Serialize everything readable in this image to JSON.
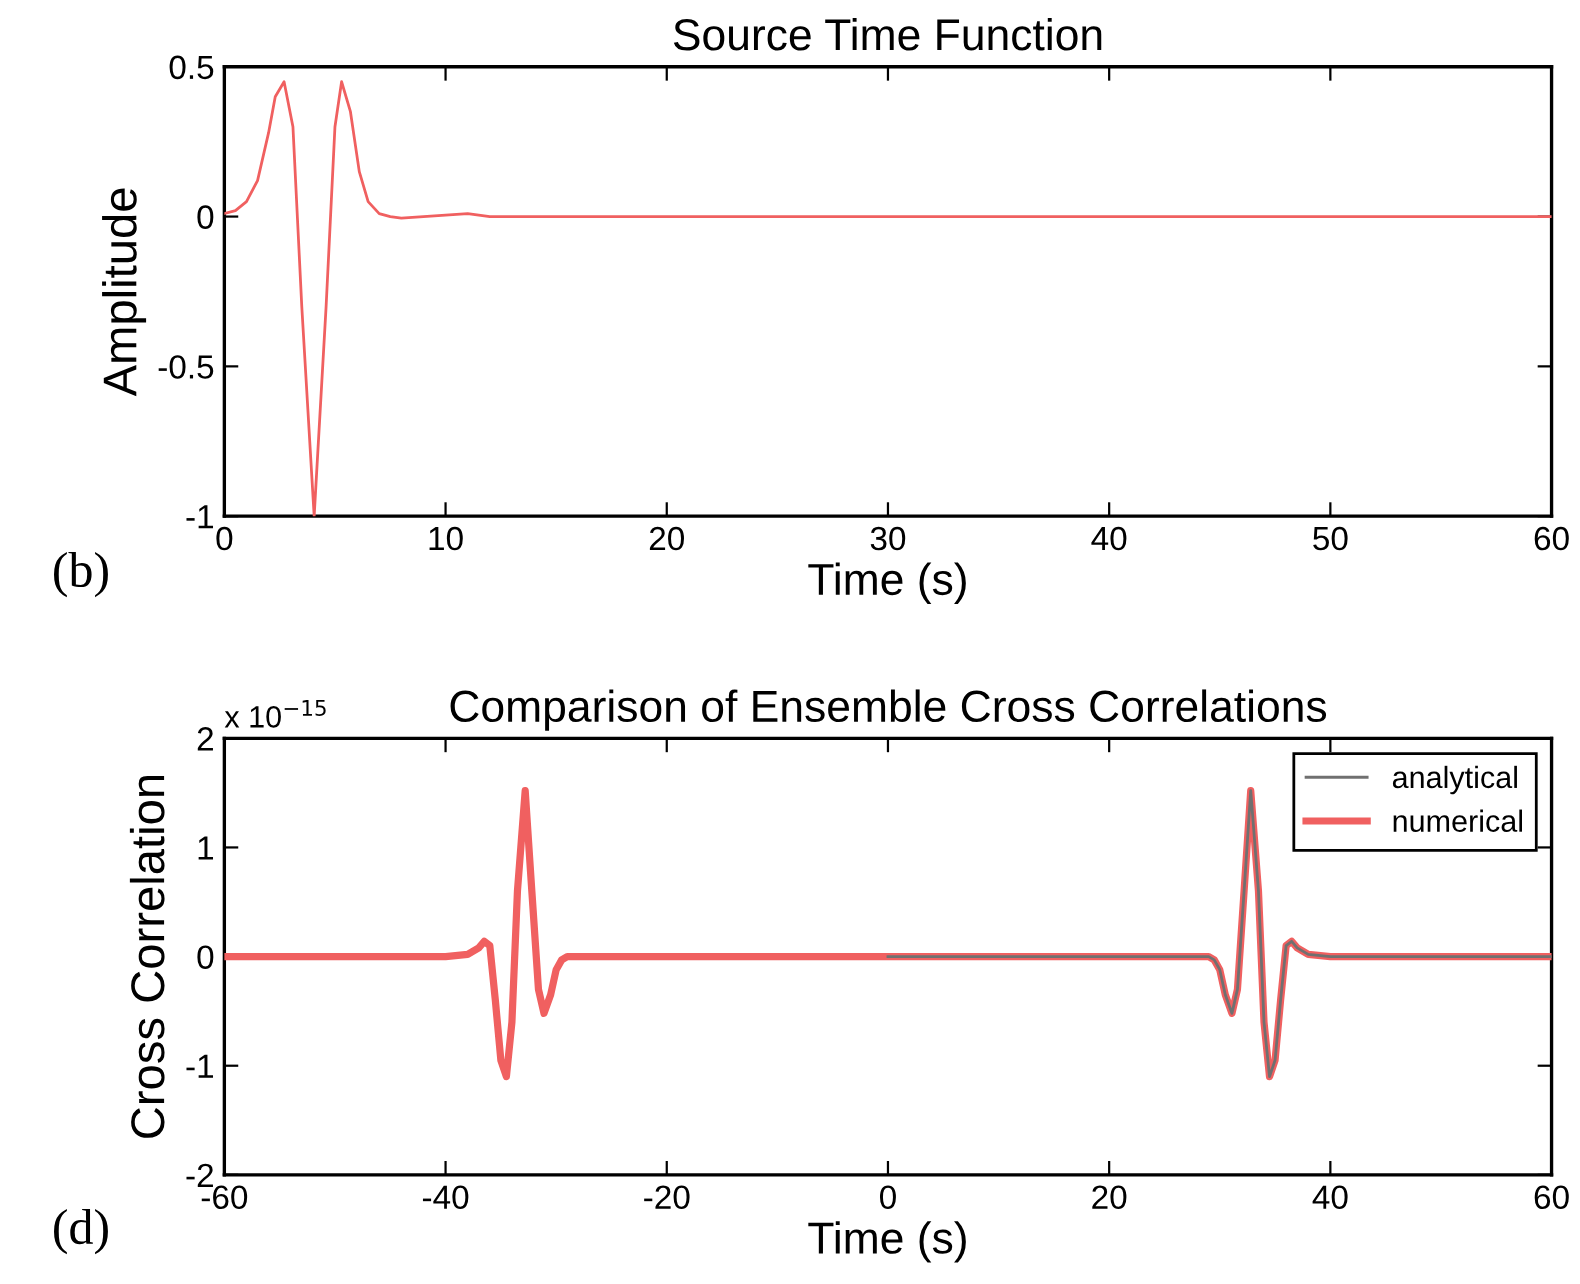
{
  "chart_data": [
    {
      "type": "line",
      "title": "Source Time Function",
      "xlabel": "Time (s)",
      "ylabel": "Amplitude",
      "xlim": [
        0,
        60
      ],
      "ylim": [
        -1,
        0.5
      ],
      "xticks": [
        0,
        10,
        20,
        30,
        40,
        50,
        60
      ],
      "yticks": [
        -1,
        -0.5,
        0,
        0.5
      ],
      "grid": false,
      "legend": false,
      "annotations": [
        "(b)"
      ],
      "series": [
        {
          "color": "#f06060",
          "x": [
            0,
            0.5,
            1,
            1.5,
            2,
            2.3,
            2.7,
            3.1,
            3.5,
            4.06,
            4.6,
            5.0,
            5.3,
            5.7,
            6.1,
            6.5,
            7,
            7.5,
            8,
            9,
            10,
            11,
            12,
            13,
            20,
            30,
            40,
            50,
            60
          ],
          "values": [
            0.01,
            0.02,
            0.05,
            0.12,
            0.28,
            0.4,
            0.45,
            0.3,
            -0.3,
            -1.0,
            -0.3,
            0.3,
            0.45,
            0.35,
            0.15,
            0.05,
            0.01,
            0,
            -0.005,
            0,
            0.005,
            0.01,
            0,
            0,
            0,
            0,
            0,
            0,
            0
          ]
        }
      ]
    },
    {
      "type": "line",
      "title": "Comparison of Ensemble Cross Correlations",
      "xlabel": "Time (s)",
      "ylabel": "Cross Correlation",
      "xlim": [
        -60,
        60
      ],
      "ylim": [
        -2,
        2
      ],
      "xticks": [
        -60,
        -40,
        -20,
        0,
        20,
        40,
        60
      ],
      "yticks": [
        -2,
        -1,
        0,
        1,
        2
      ],
      "grid": false,
      "legend": "top right",
      "annotations": [
        "x 10$^{−15}$",
        "(d)"
      ],
      "series": [
        {
          "name": "analytical",
          "color": "#707070",
          "x": [
            0,
            25,
            29,
            29.5,
            30,
            30.5,
            31.1,
            31.6,
            32.2,
            32.8,
            33.5,
            34,
            34.5,
            35,
            35.5,
            36,
            36.5,
            37,
            38,
            40,
            60
          ],
          "values": [
            0,
            0,
            0,
            -0.03,
            -0.12,
            -0.35,
            -0.52,
            -0.3,
            0.6,
            1.52,
            0.6,
            -0.6,
            -1.1,
            -0.95,
            -0.4,
            0.1,
            0.14,
            0.08,
            0.02,
            0,
            0
          ]
        },
        {
          "name": "numerical",
          "color": "#f06060",
          "x": [
            -60,
            -40,
            -38,
            -37,
            -36.5,
            -36,
            -35.5,
            -35,
            -34.5,
            -34,
            -33.5,
            -32.8,
            -32.2,
            -31.6,
            -31.1,
            -30.5,
            -30,
            -29.5,
            -29,
            -25,
            0,
            25,
            29,
            29.5,
            30,
            30.5,
            31.1,
            31.6,
            32.2,
            32.8,
            33.5,
            34,
            34.5,
            35,
            35.5,
            36,
            36.5,
            37,
            38,
            40,
            60
          ],
          "values": [
            0,
            0,
            0.02,
            0.08,
            0.14,
            0.1,
            -0.4,
            -0.95,
            -1.1,
            -0.6,
            0.6,
            1.52,
            0.6,
            -0.3,
            -0.52,
            -0.35,
            -0.12,
            -0.03,
            0,
            0,
            0,
            0,
            0,
            -0.03,
            -0.12,
            -0.35,
            -0.52,
            -0.3,
            0.6,
            1.52,
            0.6,
            -0.6,
            -1.1,
            -0.95,
            -0.4,
            0.1,
            0.14,
            0.08,
            0.02,
            0,
            0
          ]
        }
      ]
    }
  ]
}
